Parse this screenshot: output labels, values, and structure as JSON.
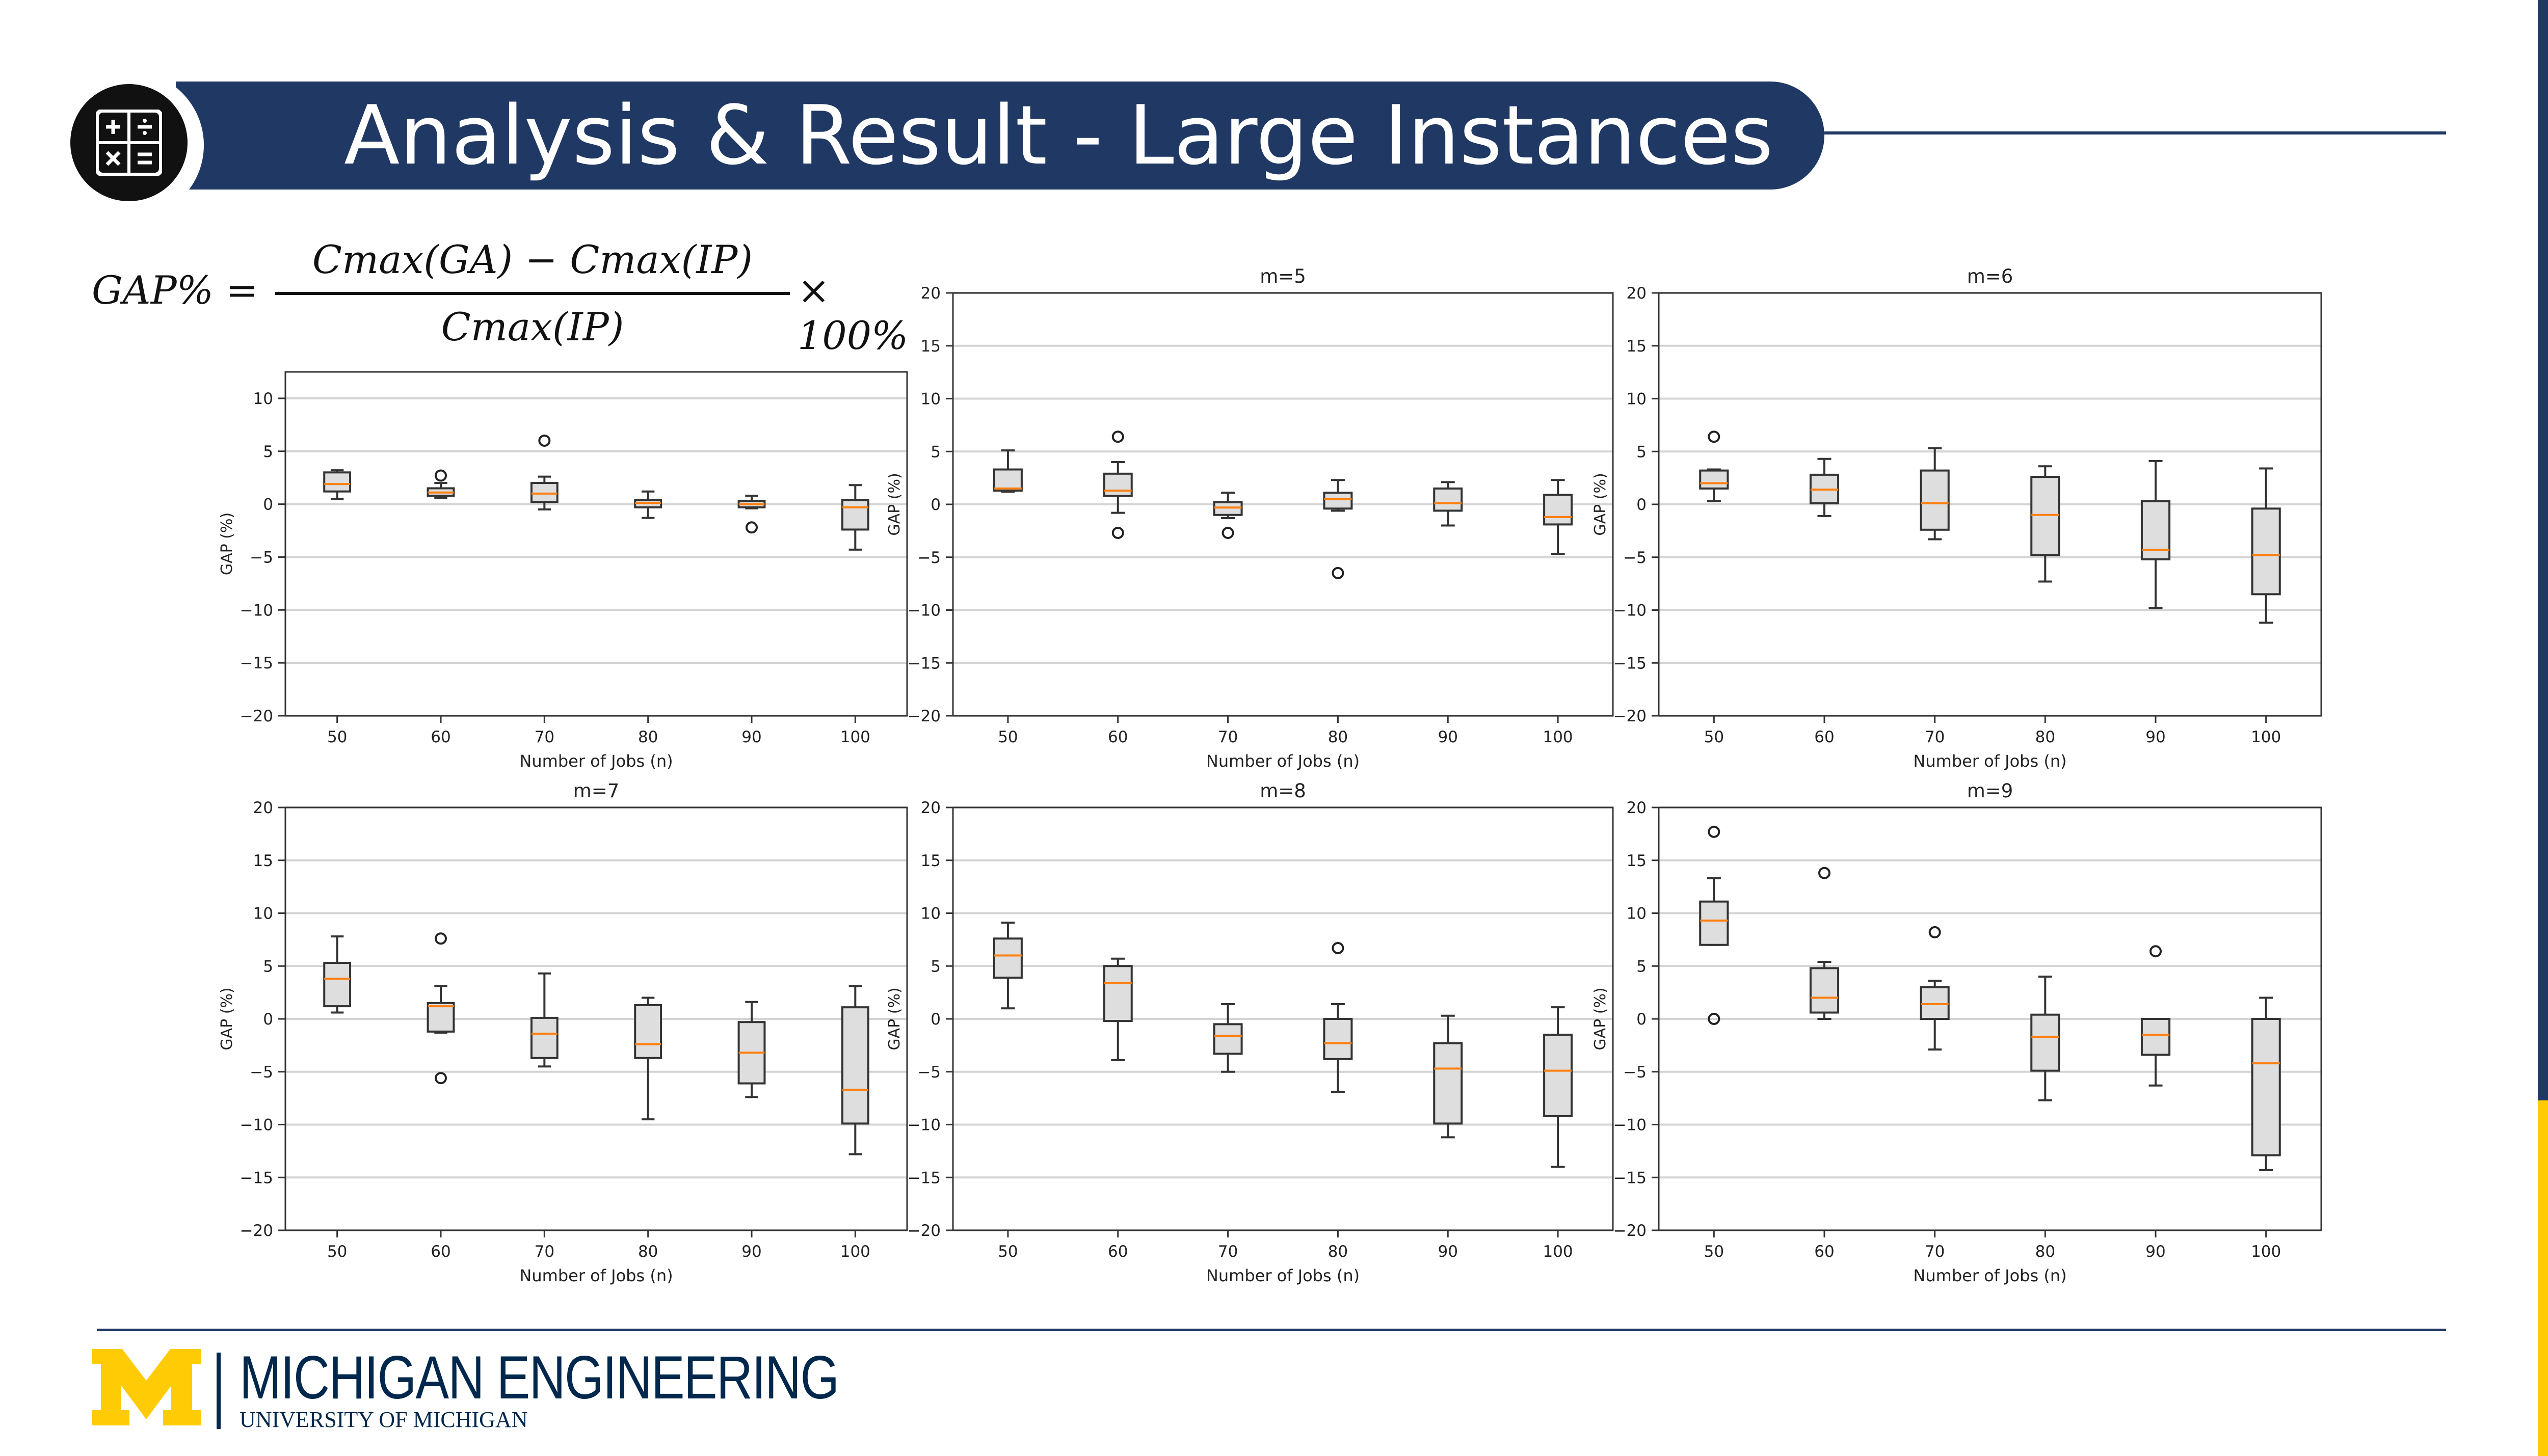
{
  "header": {
    "title": "Analysis & Result - Large Instances",
    "icon": "calculator-icon"
  },
  "formula": {
    "lhs": "GAP% =",
    "numerator": "Cmax(GA) − Cmax(IP)",
    "denominator": "Cmax(IP)",
    "tail": "× 100%"
  },
  "footer": {
    "brand": "MICHIGAN ENGINEERING",
    "sub": "UNIVERSITY OF MICHIGAN",
    "logo": "block-m-logo"
  },
  "colors": {
    "navy": "#203864",
    "maize": "#FFCB05",
    "box_fill": "#dedede",
    "median": "#ff7f0e"
  },
  "chart_data": [
    {
      "type": "box",
      "title": "",
      "xlabel": "Number of Jobs (n)",
      "ylabel": "GAP (%)",
      "categories": [
        "50",
        "60",
        "70",
        "80",
        "90",
        "100"
      ],
      "yticks": [
        "10",
        "5",
        "0",
        "−5",
        "−10",
        "−15",
        "−20"
      ],
      "ylim": [
        -20,
        12.5
      ],
      "boxes": [
        {
          "whislo": 0.5,
          "q1": 1.2,
          "med": 1.9,
          "q3": 3.0,
          "whishi": 3.2,
          "fliers": []
        },
        {
          "whislo": 0.6,
          "q1": 0.8,
          "med": 1.1,
          "q3": 1.5,
          "whishi": 2.0,
          "fliers": [
            2.7
          ]
        },
        {
          "whislo": -0.5,
          "q1": 0.2,
          "med": 1.0,
          "q3": 2.0,
          "whishi": 2.6,
          "fliers": [
            6.0
          ]
        },
        {
          "whislo": -1.3,
          "q1": -0.3,
          "med": 0.1,
          "q3": 0.4,
          "whishi": 1.2,
          "fliers": []
        },
        {
          "whislo": -0.4,
          "q1": -0.3,
          "med": 0.0,
          "q3": 0.3,
          "whishi": 0.8,
          "fliers": [
            -2.2
          ]
        },
        {
          "whislo": -4.3,
          "q1": -2.4,
          "med": -0.3,
          "q3": 0.4,
          "whishi": 1.8,
          "fliers": []
        }
      ]
    },
    {
      "type": "box",
      "title": "m=5",
      "xlabel": "Number of Jobs (n)",
      "ylabel": "GAP (%)",
      "categories": [
        "50",
        "60",
        "70",
        "80",
        "90",
        "100"
      ],
      "yticks": [
        "20",
        "15",
        "10",
        "5",
        "0",
        "−5",
        "−10",
        "−15",
        "−20"
      ],
      "ylim": [
        -20,
        20
      ],
      "boxes": [
        {
          "whislo": 1.2,
          "q1": 1.3,
          "med": 1.5,
          "q3": 3.3,
          "whishi": 5.1,
          "fliers": []
        },
        {
          "whislo": -0.8,
          "q1": 0.8,
          "med": 1.3,
          "q3": 2.9,
          "whishi": 4.0,
          "fliers": [
            6.4,
            -2.7
          ]
        },
        {
          "whislo": -1.3,
          "q1": -1.0,
          "med": -0.3,
          "q3": 0.2,
          "whishi": 1.1,
          "fliers": [
            -2.7
          ]
        },
        {
          "whislo": -0.6,
          "q1": -0.4,
          "med": 0.5,
          "q3": 1.1,
          "whishi": 2.3,
          "fliers": [
            -6.5
          ]
        },
        {
          "whislo": -2.0,
          "q1": -0.6,
          "med": 0.1,
          "q3": 1.5,
          "whishi": 2.1,
          "fliers": []
        },
        {
          "whislo": -4.7,
          "q1": -1.9,
          "med": -1.2,
          "q3": 0.9,
          "whishi": 2.3,
          "fliers": []
        }
      ]
    },
    {
      "type": "box",
      "title": "m=6",
      "xlabel": "Number of Jobs (n)",
      "ylabel": "GAP (%)",
      "categories": [
        "50",
        "60",
        "70",
        "80",
        "90",
        "100"
      ],
      "yticks": [
        "20",
        "15",
        "10",
        "5",
        "0",
        "−5",
        "−10",
        "−15",
        "−20"
      ],
      "ylim": [
        -20,
        20
      ],
      "boxes": [
        {
          "whislo": 0.3,
          "q1": 1.5,
          "med": 2.0,
          "q3": 3.2,
          "whishi": 3.3,
          "fliers": [
            6.4
          ]
        },
        {
          "whislo": -1.1,
          "q1": 0.1,
          "med": 1.4,
          "q3": 2.8,
          "whishi": 4.3,
          "fliers": []
        },
        {
          "whislo": -3.3,
          "q1": -2.4,
          "med": 0.1,
          "q3": 3.2,
          "whishi": 5.3,
          "fliers": []
        },
        {
          "whislo": -7.3,
          "q1": -4.8,
          "med": -1.0,
          "q3": 2.6,
          "whishi": 3.6,
          "fliers": []
        },
        {
          "whislo": -9.8,
          "q1": -5.2,
          "med": -4.3,
          "q3": 0.3,
          "whishi": 4.1,
          "fliers": []
        },
        {
          "whislo": -11.2,
          "q1": -8.5,
          "med": -4.8,
          "q3": -0.4,
          "whishi": 3.4,
          "fliers": []
        }
      ]
    },
    {
      "type": "box",
      "title": "m=7",
      "xlabel": "Number of Jobs (n)",
      "ylabel": "GAP (%)",
      "categories": [
        "50",
        "60",
        "70",
        "80",
        "90",
        "100"
      ],
      "yticks": [
        "20",
        "15",
        "10",
        "5",
        "0",
        "−5",
        "−10",
        "−15",
        "−20"
      ],
      "ylim": [
        -20,
        20
      ],
      "boxes": [
        {
          "whislo": 0.6,
          "q1": 1.2,
          "med": 3.8,
          "q3": 5.3,
          "whishi": 7.8,
          "fliers": []
        },
        {
          "whislo": -1.3,
          "q1": -1.2,
          "med": 1.2,
          "q3": 1.5,
          "whishi": 3.1,
          "fliers": [
            7.6,
            -5.6
          ]
        },
        {
          "whislo": -4.5,
          "q1": -3.7,
          "med": -1.4,
          "q3": 0.1,
          "whishi": 4.3,
          "fliers": []
        },
        {
          "whislo": -9.5,
          "q1": -3.7,
          "med": -2.4,
          "q3": 1.3,
          "whishi": 2.0,
          "fliers": []
        },
        {
          "whislo": -7.4,
          "q1": -6.1,
          "med": -3.2,
          "q3": -0.3,
          "whishi": 1.6,
          "fliers": []
        },
        {
          "whislo": -12.8,
          "q1": -9.9,
          "med": -6.7,
          "q3": 1.1,
          "whishi": 3.1,
          "fliers": []
        }
      ]
    },
    {
      "type": "box",
      "title": "m=8",
      "xlabel": "Number of Jobs (n)",
      "ylabel": "GAP (%)",
      "categories": [
        "50",
        "60",
        "70",
        "80",
        "90",
        "100"
      ],
      "yticks": [
        "20",
        "15",
        "10",
        "5",
        "0",
        "−5",
        "−10",
        "−15",
        "−20"
      ],
      "ylim": [
        -20,
        20
      ],
      "boxes": [
        {
          "whislo": 1.0,
          "q1": 3.9,
          "med": 6.0,
          "q3": 7.6,
          "whishi": 9.1,
          "fliers": []
        },
        {
          "whislo": -3.9,
          "q1": -0.2,
          "med": 3.4,
          "q3": 5.0,
          "whishi": 5.7,
          "fliers": []
        },
        {
          "whislo": -5.0,
          "q1": -3.3,
          "med": -1.6,
          "q3": -0.5,
          "whishi": 1.4,
          "fliers": []
        },
        {
          "whislo": -6.9,
          "q1": -3.8,
          "med": -2.3,
          "q3": 0.0,
          "whishi": 1.4,
          "fliers": [
            6.7
          ]
        },
        {
          "whislo": -11.2,
          "q1": -9.9,
          "med": -4.7,
          "q3": -2.3,
          "whishi": 0.3,
          "fliers": []
        },
        {
          "whislo": -14.0,
          "q1": -9.2,
          "med": -4.9,
          "q3": -1.5,
          "whishi": 1.1,
          "fliers": []
        }
      ]
    },
    {
      "type": "box",
      "title": "m=9",
      "xlabel": "Number of Jobs (n)",
      "ylabel": "GAP (%)",
      "categories": [
        "50",
        "60",
        "70",
        "80",
        "90",
        "100"
      ],
      "yticks": [
        "20",
        "15",
        "10",
        "5",
        "0",
        "−5",
        "−10",
        "−15",
        "−20"
      ],
      "ylim": [
        -20,
        20
      ],
      "boxes": [
        {
          "whislo": 7.0,
          "q1": 7.0,
          "med": 9.3,
          "q3": 11.1,
          "whishi": 13.3,
          "fliers": [
            17.7,
            0.0
          ]
        },
        {
          "whislo": 0.0,
          "q1": 0.6,
          "med": 2.0,
          "q3": 4.8,
          "whishi": 5.4,
          "fliers": [
            13.8
          ]
        },
        {
          "whislo": -2.9,
          "q1": 0.0,
          "med": 1.4,
          "q3": 3.0,
          "whishi": 3.6,
          "fliers": [
            8.2
          ]
        },
        {
          "whislo": -7.7,
          "q1": -4.9,
          "med": -1.7,
          "q3": 0.4,
          "whishi": 4.0,
          "fliers": []
        },
        {
          "whislo": -6.3,
          "q1": -3.4,
          "med": -1.5,
          "q3": 0.0,
          "whishi": 0.0,
          "fliers": [
            6.4
          ]
        },
        {
          "whislo": -14.3,
          "q1": -12.9,
          "med": -4.2,
          "q3": 0.0,
          "whishi": 2.0,
          "fliers": []
        }
      ]
    }
  ]
}
